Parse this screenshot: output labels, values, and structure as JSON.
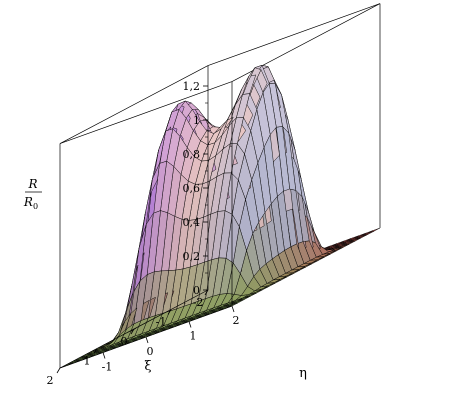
{
  "chart_data": {
    "type": "surface3d",
    "title": "",
    "zlabel_num": "R",
    "zlabel_den": "R",
    "zlabel_sub": "0",
    "xlabel": "ξ",
    "ylabel": "η",
    "x_range": [
      -2,
      2
    ],
    "y_range": [
      -2,
      2
    ],
    "z_range": [
      0,
      1.2
    ],
    "x_ticks": [
      "-2",
      "-1",
      "0",
      "1",
      "2"
    ],
    "y_ticks": [
      "-1",
      "0",
      "1",
      "2"
    ],
    "z_ticks": [
      "0",
      "0,2",
      "0,4",
      "0,6",
      "0,8",
      "1",
      "1,2"
    ],
    "z_tick_values": [
      0,
      0.2,
      0.4,
      0.6,
      0.8,
      1.0,
      1.2
    ],
    "peaks": [
      {
        "xi": 0.2,
        "eta": -0.85,
        "height": 1.19
      },
      {
        "xi": -0.2,
        "eta": 0.85,
        "height": 1.23
      }
    ],
    "saddle_height": 1.03,
    "grid": false,
    "box": true
  },
  "colors": {
    "peak_violet": "#a460f0",
    "peak_blue": "#a8c0ec",
    "base_green": "#9cc46c",
    "base_red": "#e06060",
    "mesh": "#000000"
  }
}
